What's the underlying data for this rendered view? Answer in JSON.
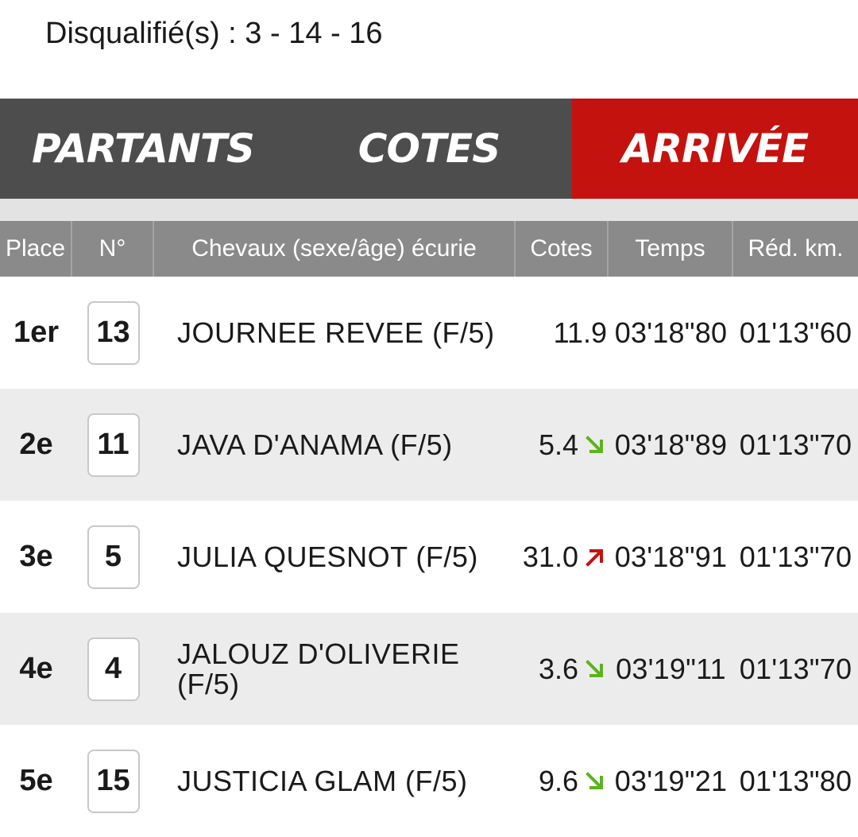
{
  "header": {
    "disqualified": "Disqualifié(s) : 3 - 14 - 16"
  },
  "tabs": [
    {
      "label": "PARTANTS",
      "active": false
    },
    {
      "label": "COTES",
      "active": false
    },
    {
      "label": "ARRIVÉE",
      "active": true
    }
  ],
  "colors": {
    "tab_bg": "#4d4d4d",
    "tab_active_bg": "#c4120e",
    "header_bg": "#8a8a8a",
    "trend_down": "#5bb31e",
    "trend_up": "#c4120e"
  },
  "table": {
    "columns": [
      "Place",
      "N°",
      "Chevaux (sexe/âge) écurie",
      "Cotes",
      "Temps",
      "Réd. km."
    ],
    "rows": [
      {
        "place": "1er",
        "num": "13",
        "name": "JOURNEE REVEE (F/5)",
        "cote": "11.9",
        "trend": "none",
        "temps": "03'18\"80",
        "red": "01'13\"60"
      },
      {
        "place": "2e",
        "num": "11",
        "name": "JAVA D'ANAMA (F/5)",
        "cote": "5.4",
        "trend": "down",
        "temps": "03'18\"89",
        "red": "01'13\"70"
      },
      {
        "place": "3e",
        "num": "5",
        "name": "JULIA QUESNOT (F/5)",
        "cote": "31.0",
        "trend": "up",
        "temps": "03'18\"91",
        "red": "01'13\"70"
      },
      {
        "place": "4e",
        "num": "4",
        "name": "JALOUZ D'OLIVERIE (F/5)",
        "cote": "3.6",
        "trend": "down",
        "temps": "03'19\"11",
        "red": "01'13\"70"
      },
      {
        "place": "5e",
        "num": "15",
        "name": "JUSTICIA GLAM (F/5)",
        "cote": "9.6",
        "trend": "down",
        "temps": "03'19\"21",
        "red": "01'13\"80"
      }
    ]
  }
}
